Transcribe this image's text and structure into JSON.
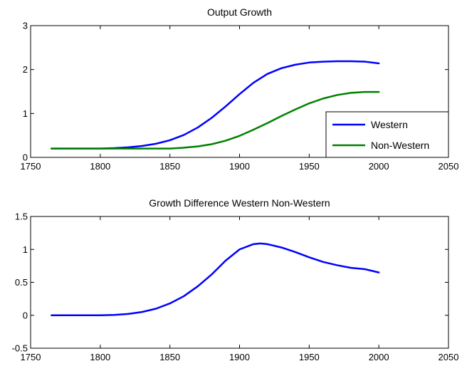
{
  "chart_data": [
    {
      "type": "line",
      "title": "Output Growth",
      "xlabel": "",
      "ylabel": "",
      "xlim": [
        1750,
        2050
      ],
      "ylim": [
        0,
        3
      ],
      "xticks": [
        1750,
        1800,
        1850,
        1900,
        1950,
        2000,
        2050
      ],
      "xtick_labels": [
        "1750",
        "1800",
        "1850",
        "1900",
        "1950",
        "2000",
        "2050"
      ],
      "yticks": [
        0,
        1,
        2,
        3
      ],
      "ytick_labels": [
        "0",
        "1",
        "2",
        "3"
      ],
      "legend": "bottom-right",
      "grid": false,
      "x": [
        1765,
        1780,
        1800,
        1810,
        1820,
        1830,
        1840,
        1850,
        1860,
        1870,
        1880,
        1890,
        1900,
        1910,
        1920,
        1930,
        1940,
        1950,
        1960,
        1970,
        1980,
        1990,
        2000
      ],
      "series": [
        {
          "name": "Western",
          "color": "#0000ff",
          "values": [
            0.2,
            0.2,
            0.2,
            0.21,
            0.23,
            0.26,
            0.31,
            0.39,
            0.51,
            0.68,
            0.9,
            1.16,
            1.44,
            1.7,
            1.9,
            2.03,
            2.11,
            2.16,
            2.18,
            2.19,
            2.19,
            2.18,
            2.14
          ]
        },
        {
          "name": "Non-Western",
          "color": "#008000",
          "values": [
            0.2,
            0.2,
            0.2,
            0.2,
            0.2,
            0.2,
            0.2,
            0.2,
            0.22,
            0.25,
            0.3,
            0.38,
            0.49,
            0.63,
            0.78,
            0.94,
            1.09,
            1.23,
            1.34,
            1.42,
            1.47,
            1.49,
            1.49
          ]
        }
      ]
    },
    {
      "type": "line",
      "title": "Growth Difference Western Non-Western",
      "xlabel": "",
      "ylabel": "",
      "xlim": [
        1750,
        2050
      ],
      "ylim": [
        -0.5,
        1.5
      ],
      "xticks": [
        1750,
        1800,
        1850,
        1900,
        1950,
        2000,
        2050
      ],
      "xtick_labels": [
        "1750",
        "1800",
        "1850",
        "1900",
        "1950",
        "2000",
        "2050"
      ],
      "yticks": [
        -0.5,
        0,
        0.5,
        1,
        1.5
      ],
      "ytick_labels": [
        "-0.5",
        "0",
        "0.5",
        "1",
        "1.5"
      ],
      "grid": false,
      "x": [
        1765,
        1780,
        1800,
        1810,
        1820,
        1830,
        1840,
        1850,
        1860,
        1870,
        1880,
        1890,
        1900,
        1910,
        1915,
        1920,
        1930,
        1940,
        1950,
        1960,
        1970,
        1980,
        1990,
        2000
      ],
      "series": [
        {
          "color": "#0000ff",
          "values": [
            0,
            0,
            0,
            0.005,
            0.02,
            0.05,
            0.1,
            0.18,
            0.29,
            0.44,
            0.62,
            0.83,
            1.0,
            1.08,
            1.09,
            1.08,
            1.03,
            0.96,
            0.88,
            0.81,
            0.76,
            0.72,
            0.7,
            0.65
          ]
        }
      ]
    }
  ]
}
